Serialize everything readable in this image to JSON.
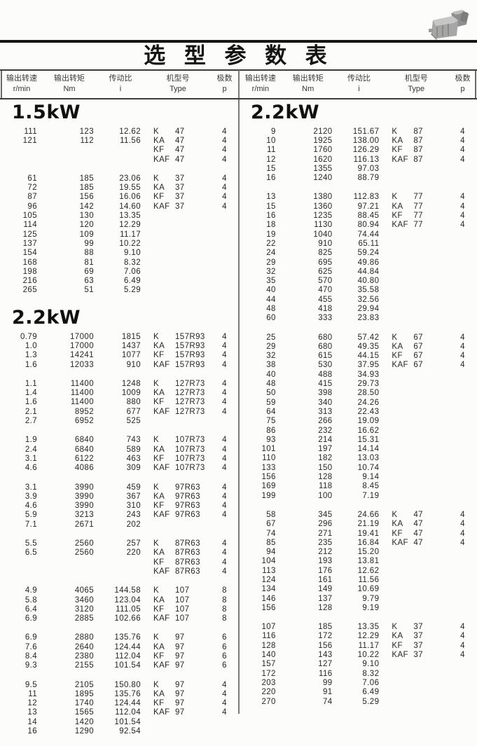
{
  "title": "选 型 参 数 表",
  "header": {
    "cols": [
      {
        "zh": "输出转速",
        "en": "r/min"
      },
      {
        "zh": "输出转矩",
        "en": "Nm"
      },
      {
        "zh": "传动比",
        "en": "i"
      },
      {
        "zh": "机型号",
        "en": "Type"
      },
      {
        "zh": "极数",
        "en": "p"
      }
    ]
  },
  "left_column": {
    "sections": [
      {
        "power": "1.5kW",
        "groups": [
          {
            "rows": [
              [
                "111",
                "123",
                "12.62"
              ],
              [
                "121",
                "112",
                "11.56"
              ]
            ],
            "types": [
              [
                "K",
                "47",
                "4"
              ],
              [
                "KA",
                "47",
                "4"
              ],
              [
                "KF",
                "47",
                "4"
              ],
              [
                "KAF",
                "47",
                "4"
              ]
            ]
          },
          {
            "rows": [
              [
                "61",
                "185",
                "23.06"
              ],
              [
                "72",
                "185",
                "19.55"
              ],
              [
                "87",
                "156",
                "16.06"
              ],
              [
                "96",
                "142",
                "14.60"
              ],
              [
                "105",
                "130",
                "13.35"
              ],
              [
                "114",
                "120",
                "12.29"
              ],
              [
                "125",
                "109",
                "11.17"
              ],
              [
                "137",
                "99",
                "10.22"
              ],
              [
                "154",
                "88",
                "9.10"
              ],
              [
                "168",
                "81",
                "8.32"
              ],
              [
                "198",
                "69",
                "7.06"
              ],
              [
                "216",
                "63",
                "6.49"
              ],
              [
                "265",
                "51",
                "5.29"
              ]
            ],
            "types": [
              [
                "K",
                "37",
                "4"
              ],
              [
                "KA",
                "37",
                "4"
              ],
              [
                "KF",
                "37",
                "4"
              ],
              [
                "KAF",
                "37",
                "4"
              ]
            ]
          }
        ]
      },
      {
        "power": "2.2kW",
        "groups": [
          {
            "rows": [
              [
                "0.79",
                "17000",
                "1815"
              ],
              [
                "1.0",
                "17000",
                "1437"
              ],
              [
                "1.3",
                "14241",
                "1077"
              ],
              [
                "1.6",
                "12033",
                "910"
              ]
            ],
            "types": [
              [
                "K",
                "157R93",
                "4"
              ],
              [
                "KA",
                "157R93",
                "4"
              ],
              [
                "KF",
                "157R93",
                "4"
              ],
              [
                "KAF",
                "157R93",
                "4"
              ]
            ]
          },
          {
            "rows": [
              [
                "1.1",
                "11400",
                "1248"
              ],
              [
                "1.4",
                "11400",
                "1009"
              ],
              [
                "1.6",
                "11400",
                "880"
              ],
              [
                "2.1",
                "8952",
                "677"
              ],
              [
                "2.7",
                "6952",
                "525"
              ]
            ],
            "types": [
              [
                "K",
                "127R73",
                "4"
              ],
              [
                "KA",
                "127R73",
                "4"
              ],
              [
                "KF",
                "127R73",
                "4"
              ],
              [
                "KAF",
                "127R73",
                "4"
              ]
            ]
          },
          {
            "rows": [
              [
                "1.9",
                "6840",
                "743"
              ],
              [
                "2.4",
                "6840",
                "589"
              ],
              [
                "3.1",
                "6122",
                "463"
              ],
              [
                "4.6",
                "4086",
                "309"
              ]
            ],
            "types": [
              [
                "K",
                "107R73",
                "4"
              ],
              [
                "KA",
                "107R73",
                "4"
              ],
              [
                "KF",
                "107R73",
                "4"
              ],
              [
                "KAF",
                "107R73",
                "4"
              ]
            ]
          },
          {
            "rows": [
              [
                "3.1",
                "3990",
                "459"
              ],
              [
                "3.9",
                "3990",
                "367"
              ],
              [
                "4.6",
                "3990",
                "310"
              ],
              [
                "5.9",
                "3213",
                "243"
              ],
              [
                "7.1",
                "2671",
                "202"
              ]
            ],
            "types": [
              [
                "K",
                "97R63",
                "4"
              ],
              [
                "KA",
                "97R63",
                "4"
              ],
              [
                "KF",
                "97R63",
                "4"
              ],
              [
                "KAF",
                "97R63",
                "4"
              ]
            ]
          },
          {
            "rows": [
              [
                "5.5",
                "2560",
                "257"
              ],
              [
                "6.5",
                "2560",
                "220"
              ]
            ],
            "types": [
              [
                "K",
                "87R63",
                "4"
              ],
              [
                "KA",
                "87R63",
                "4"
              ],
              [
                "KF",
                "87R63",
                "4"
              ],
              [
                "KAF",
                "87R63",
                "4"
              ]
            ]
          },
          {
            "rows": [
              [
                "4.9",
                "4065",
                "144.58"
              ],
              [
                "5.8",
                "3460",
                "123.04"
              ],
              [
                "6.4",
                "3120",
                "111.05"
              ],
              [
                "6.9",
                "2885",
                "102.66"
              ]
            ],
            "types": [
              [
                "K",
                "107",
                "8"
              ],
              [
                "KA",
                "107",
                "8"
              ],
              [
                "KF",
                "107",
                "8"
              ],
              [
                "KAF",
                "107",
                "8"
              ]
            ]
          },
          {
            "rows": [
              [
                "6.9",
                "2880",
                "135.76"
              ],
              [
                "7.6",
                "2640",
                "124.44"
              ],
              [
                "8.4",
                "2380",
                "112.04"
              ],
              [
                "9.3",
                "2155",
                "101.54"
              ]
            ],
            "types": [
              [
                "K",
                "97",
                "6"
              ],
              [
                "KA",
                "97",
                "6"
              ],
              [
                "KF",
                "97",
                "6"
              ],
              [
                "KAF",
                "97",
                "6"
              ]
            ]
          },
          {
            "rows": [
              [
                "9.5",
                "2105",
                "150.80"
              ],
              [
                "11",
                "1895",
                "135.76"
              ],
              [
                "12",
                "1740",
                "124.44"
              ],
              [
                "13",
                "1565",
                "112.04"
              ],
              [
                "14",
                "1420",
                "101.54"
              ],
              [
                "16",
                "1290",
                "92.54"
              ]
            ],
            "types": [
              [
                "K",
                "97",
                "4"
              ],
              [
                "KA",
                "97",
                "4"
              ],
              [
                "KF",
                "97",
                "4"
              ],
              [
                "KAF",
                "97",
                "4"
              ]
            ]
          }
        ]
      }
    ]
  },
  "right_column": {
    "sections": [
      {
        "power": "2.2kW",
        "groups": [
          {
            "rows": [
              [
                "9",
                "2120",
                "151.67"
              ],
              [
                "10",
                "1925",
                "138.00"
              ],
              [
                "11",
                "1760",
                "126.29"
              ],
              [
                "12",
                "1620",
                "116.13"
              ],
              [
                "15",
                "1355",
                "97.03"
              ],
              [
                "16",
                "1240",
                "88.79"
              ]
            ],
            "types": [
              [
                "K",
                "87",
                "4"
              ],
              [
                "KA",
                "87",
                "4"
              ],
              [
                "KF",
                "87",
                "4"
              ],
              [
                "KAF",
                "87",
                "4"
              ]
            ]
          },
          {
            "rows": [
              [
                "13",
                "1380",
                "112.83"
              ],
              [
                "15",
                "1360",
                "97.21"
              ],
              [
                "16",
                "1235",
                "88.45"
              ],
              [
                "18",
                "1130",
                "80.94"
              ],
              [
                "19",
                "1040",
                "74.44"
              ],
              [
                "22",
                "910",
                "65.11"
              ],
              [
                "24",
                "825",
                "59.24"
              ],
              [
                "29",
                "695",
                "49.86"
              ],
              [
                "32",
                "625",
                "44.84"
              ],
              [
                "35",
                "570",
                "40.80"
              ],
              [
                "40",
                "470",
                "35.58"
              ],
              [
                "44",
                "455",
                "32.56"
              ],
              [
                "48",
                "418",
                "29.94"
              ],
              [
                "60",
                "333",
                "23.83"
              ]
            ],
            "types": [
              [
                "K",
                "77",
                "4"
              ],
              [
                "KA",
                "77",
                "4"
              ],
              [
                "KF",
                "77",
                "4"
              ],
              [
                "KAF",
                "77",
                "4"
              ]
            ]
          },
          {
            "rows": [
              [
                "25",
                "680",
                "57.42"
              ],
              [
                "29",
                "680",
                "49.35"
              ],
              [
                "32",
                "615",
                "44.15"
              ],
              [
                "38",
                "530",
                "37.95"
              ],
              [
                "40",
                "488",
                "34.93"
              ],
              [
                "48",
                "415",
                "29.73"
              ],
              [
                "50",
                "398",
                "28.50"
              ],
              [
                "59",
                "340",
                "24.26"
              ],
              [
                "64",
                "313",
                "22.43"
              ],
              [
                "75",
                "266",
                "19.09"
              ],
              [
                "86",
                "232",
                "16.62"
              ],
              [
                "93",
                "214",
                "15.31"
              ],
              [
                "101",
                "197",
                "14.14"
              ],
              [
                "110",
                "182",
                "13.03"
              ],
              [
                "133",
                "150",
                "10.74"
              ],
              [
                "156",
                "128",
                "9.14"
              ],
              [
                "169",
                "118",
                "8.45"
              ],
              [
                "199",
                "100",
                "7.19"
              ]
            ],
            "types": [
              [
                "K",
                "67",
                "4"
              ],
              [
                "KA",
                "67",
                "4"
              ],
              [
                "KF",
                "67",
                "4"
              ],
              [
                "KAF",
                "67",
                "4"
              ]
            ]
          },
          {
            "rows": [
              [
                "58",
                "345",
                "24.66"
              ],
              [
                "67",
                "296",
                "21.19"
              ],
              [
                "74",
                "271",
                "19.41"
              ],
              [
                "85",
                "235",
                "16.84"
              ],
              [
                "94",
                "212",
                "15.20"
              ],
              [
                "104",
                "193",
                "13.81"
              ],
              [
                "113",
                "176",
                "12.62"
              ],
              [
                "124",
                "161",
                "11.56"
              ],
              [
                "134",
                "149",
                "10.69"
              ],
              [
                "146",
                "137",
                "9.79"
              ],
              [
                "156",
                "128",
                "9.19"
              ]
            ],
            "types": [
              [
                "K",
                "47",
                "4"
              ],
              [
                "KA",
                "47",
                "4"
              ],
              [
                "KF",
                "47",
                "4"
              ],
              [
                "KAF",
                "47",
                "4"
              ]
            ]
          },
          {
            "rows": [
              [
                "107",
                "185",
                "13.35"
              ],
              [
                "116",
                "172",
                "12.29"
              ],
              [
                "128",
                "156",
                "11.17"
              ],
              [
                "140",
                "143",
                "10.22"
              ],
              [
                "157",
                "127",
                "9.10"
              ],
              [
                "172",
                "116",
                "8.32"
              ],
              [
                "203",
                "99",
                "7.06"
              ],
              [
                "220",
                "91",
                "6.49"
              ],
              [
                "270",
                "74",
                "5.29"
              ]
            ],
            "types": [
              [
                "K",
                "37",
                "4"
              ],
              [
                "KA",
                "37",
                "4"
              ],
              [
                "KF",
                "37",
                "4"
              ],
              [
                "KAF",
                "37",
                "4"
              ]
            ]
          }
        ]
      }
    ]
  }
}
